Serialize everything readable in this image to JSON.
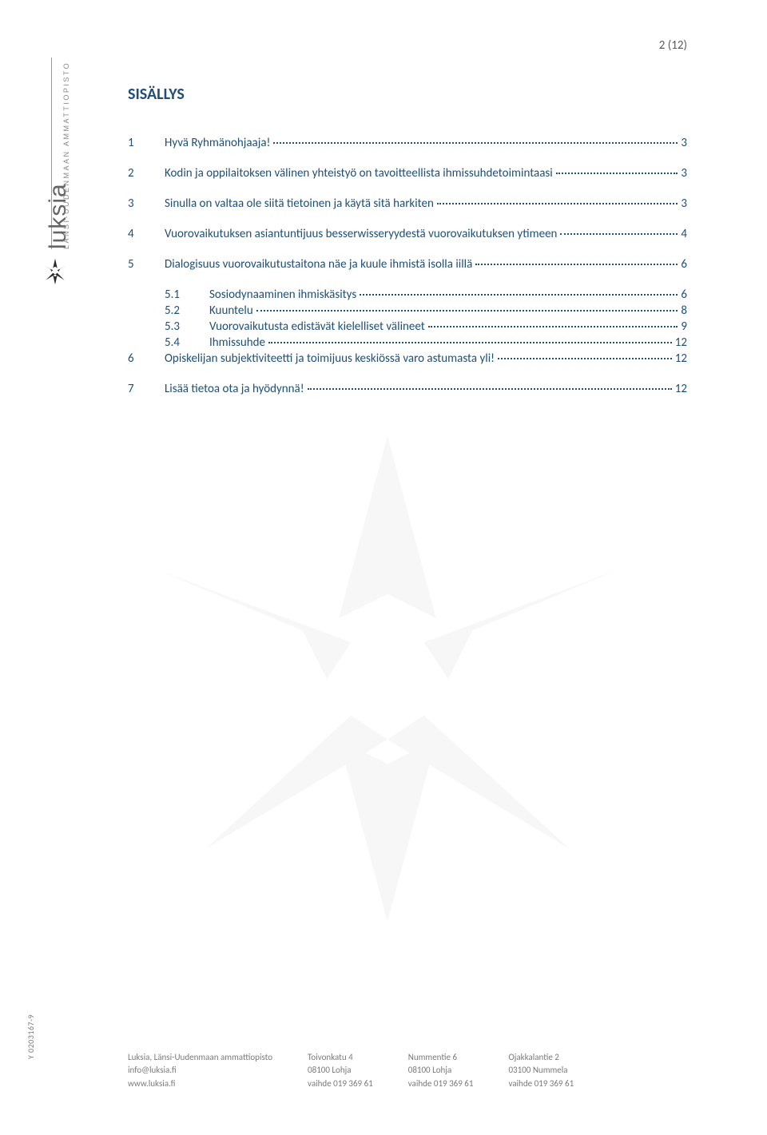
{
  "page_number": "2 (12)",
  "logo": {
    "brand": "luksia",
    "subtitle": "LÄNSI-UUDENMAAN AMMATTIOPISTO",
    "asterisk_color": "#2b2b2b"
  },
  "colors": {
    "heading": "#1f4e79",
    "toc_text": "#1f4e79",
    "footer_text": "#7a7a7a",
    "page_num": "#595959",
    "watermark": "#808080",
    "background": "#ffffff"
  },
  "heading": "SISÄLLYS",
  "toc": [
    {
      "num": "1",
      "label": "Hyvä Ryhmänohjaaja!",
      "page": "3"
    },
    {
      "num": "2",
      "label": "Kodin ja oppilaitoksen välinen yhteistyö on tavoitteellista ihmissuhdetoimintaasi",
      "page": "3"
    },
    {
      "num": "3",
      "label": "Sinulla on valtaa ole siitä tietoinen ja käytä sitä harkiten",
      "page": "3"
    },
    {
      "num": "4",
      "label": "Vuorovaikutuksen asiantuntijuus besserwisseryydestä vuorovaikutuksen ytimeen",
      "page": "4"
    },
    {
      "num": "5",
      "label": "Dialogisuus vuorovaikutustaitona näe ja kuule ihmistä isolla iillä",
      "page": "6",
      "children": [
        {
          "num": "5.1",
          "label": "Sosiodynaaminen ihmiskäsitys",
          "page": "6"
        },
        {
          "num": "5.2",
          "label": "Kuuntelu",
          "page": "8"
        },
        {
          "num": "5.3",
          "label": "Vuorovaikutusta edistävät kielelliset välineet",
          "page": "9"
        },
        {
          "num": "5.4",
          "label": "Ihmissuhde",
          "page": "12"
        }
      ]
    },
    {
      "num": "6",
      "label": "Opiskelijan subjektiviteetti ja toimijuus keskiössä varo astumasta yli!",
      "page": "12"
    },
    {
      "num": "7",
      "label": "Lisää tietoa ota ja hyödynnä!",
      "page": "12"
    }
  ],
  "ytag": "Y 0203167-9",
  "footer": {
    "col1": {
      "l1": "Luksia, Länsi-Uudenmaan ammattiopisto",
      "l2": "info@luksia.fi",
      "l3": "www.luksia.fi"
    },
    "col2": {
      "l1": "Toivonkatu 4",
      "l2": "08100 Lohja",
      "l3": "vaihde  019 369 61"
    },
    "col3": {
      "l1": "Nummentie 6",
      "l2": "08100 Lohja",
      "l3": "vaihde  019 369 61"
    },
    "col4": {
      "l1": "Ojakkalantie 2",
      "l2": "03100 Nummela",
      "l3": "vaihde  019 369 61"
    }
  }
}
